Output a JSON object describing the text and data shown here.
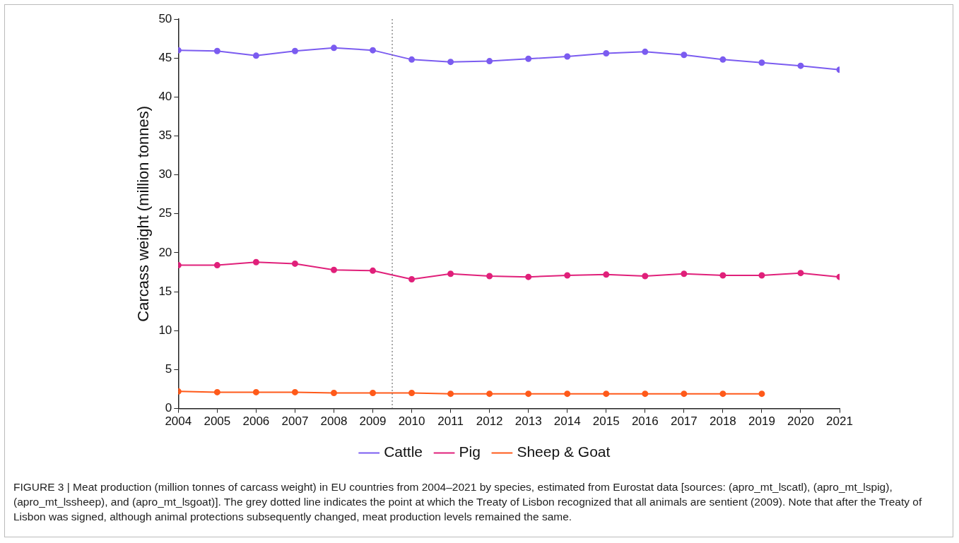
{
  "chart_data": {
    "type": "line",
    "ylabel": "Carcass weight (million tonnes)",
    "x": [
      2004,
      2005,
      2006,
      2007,
      2008,
      2009,
      2010,
      2011,
      2012,
      2013,
      2014,
      2015,
      2016,
      2017,
      2018,
      2019,
      2020,
      2021
    ],
    "xlim": [
      2004,
      2021
    ],
    "xticks": [
      2004,
      2005,
      2006,
      2007,
      2008,
      2009,
      2010,
      2011,
      2012,
      2013,
      2014,
      2015,
      2016,
      2017,
      2018,
      2019,
      2020,
      2021
    ],
    "ylim": [
      0,
      50
    ],
    "yticks": [
      0,
      5,
      10,
      15,
      20,
      25,
      30,
      35,
      40,
      45,
      50
    ],
    "series": [
      {
        "name": "Cattle",
        "color": "#7b5cf0",
        "values": [
          46.0,
          45.9,
          45.3,
          45.9,
          46.3,
          46.0,
          44.8,
          44.5,
          44.6,
          44.9,
          45.2,
          45.6,
          45.8,
          45.4,
          44.8,
          44.4,
          44.0,
          43.5
        ]
      },
      {
        "name": "Pig",
        "color": "#e0207a",
        "values": [
          18.4,
          18.4,
          18.8,
          18.6,
          17.8,
          17.7,
          16.6,
          17.3,
          17.0,
          16.9,
          17.1,
          17.2,
          17.0,
          17.3,
          17.1,
          17.1,
          17.4,
          16.9
        ]
      },
      {
        "name": "Sheep & Goat",
        "color": "#ff5a1a",
        "values": [
          2.2,
          2.1,
          2.1,
          2.1,
          2.0,
          2.0,
          2.0,
          1.9,
          1.9,
          1.9,
          1.9,
          1.9,
          1.9,
          1.9,
          1.9,
          1.9,
          null,
          null
        ]
      }
    ],
    "ref_lines": [
      {
        "axis": "x",
        "value": 2009.5,
        "color": "#555555",
        "line_style": "dotted"
      }
    ],
    "grid": false,
    "legend": "bottom",
    "marker": "circle",
    "line_style": "solid",
    "annotations": [
      "FIGURE 3 | Meat production (million tonnes of carcass weight) in EU countries from 2004–2021 by species, estimated from Eurostat data [sources: (apro_mt_lscatl), (apro_mt_lspig), (apro_mt_lssheep), and (apro_mt_lsgoat)]. The grey dotted line indicates the point at which the Treaty of Lisbon recognized that all animals are sentient (2009). Note that after the Treaty of Lisbon was signed, although animal protections subsequently changed, meat production levels remained the same."
    ]
  }
}
